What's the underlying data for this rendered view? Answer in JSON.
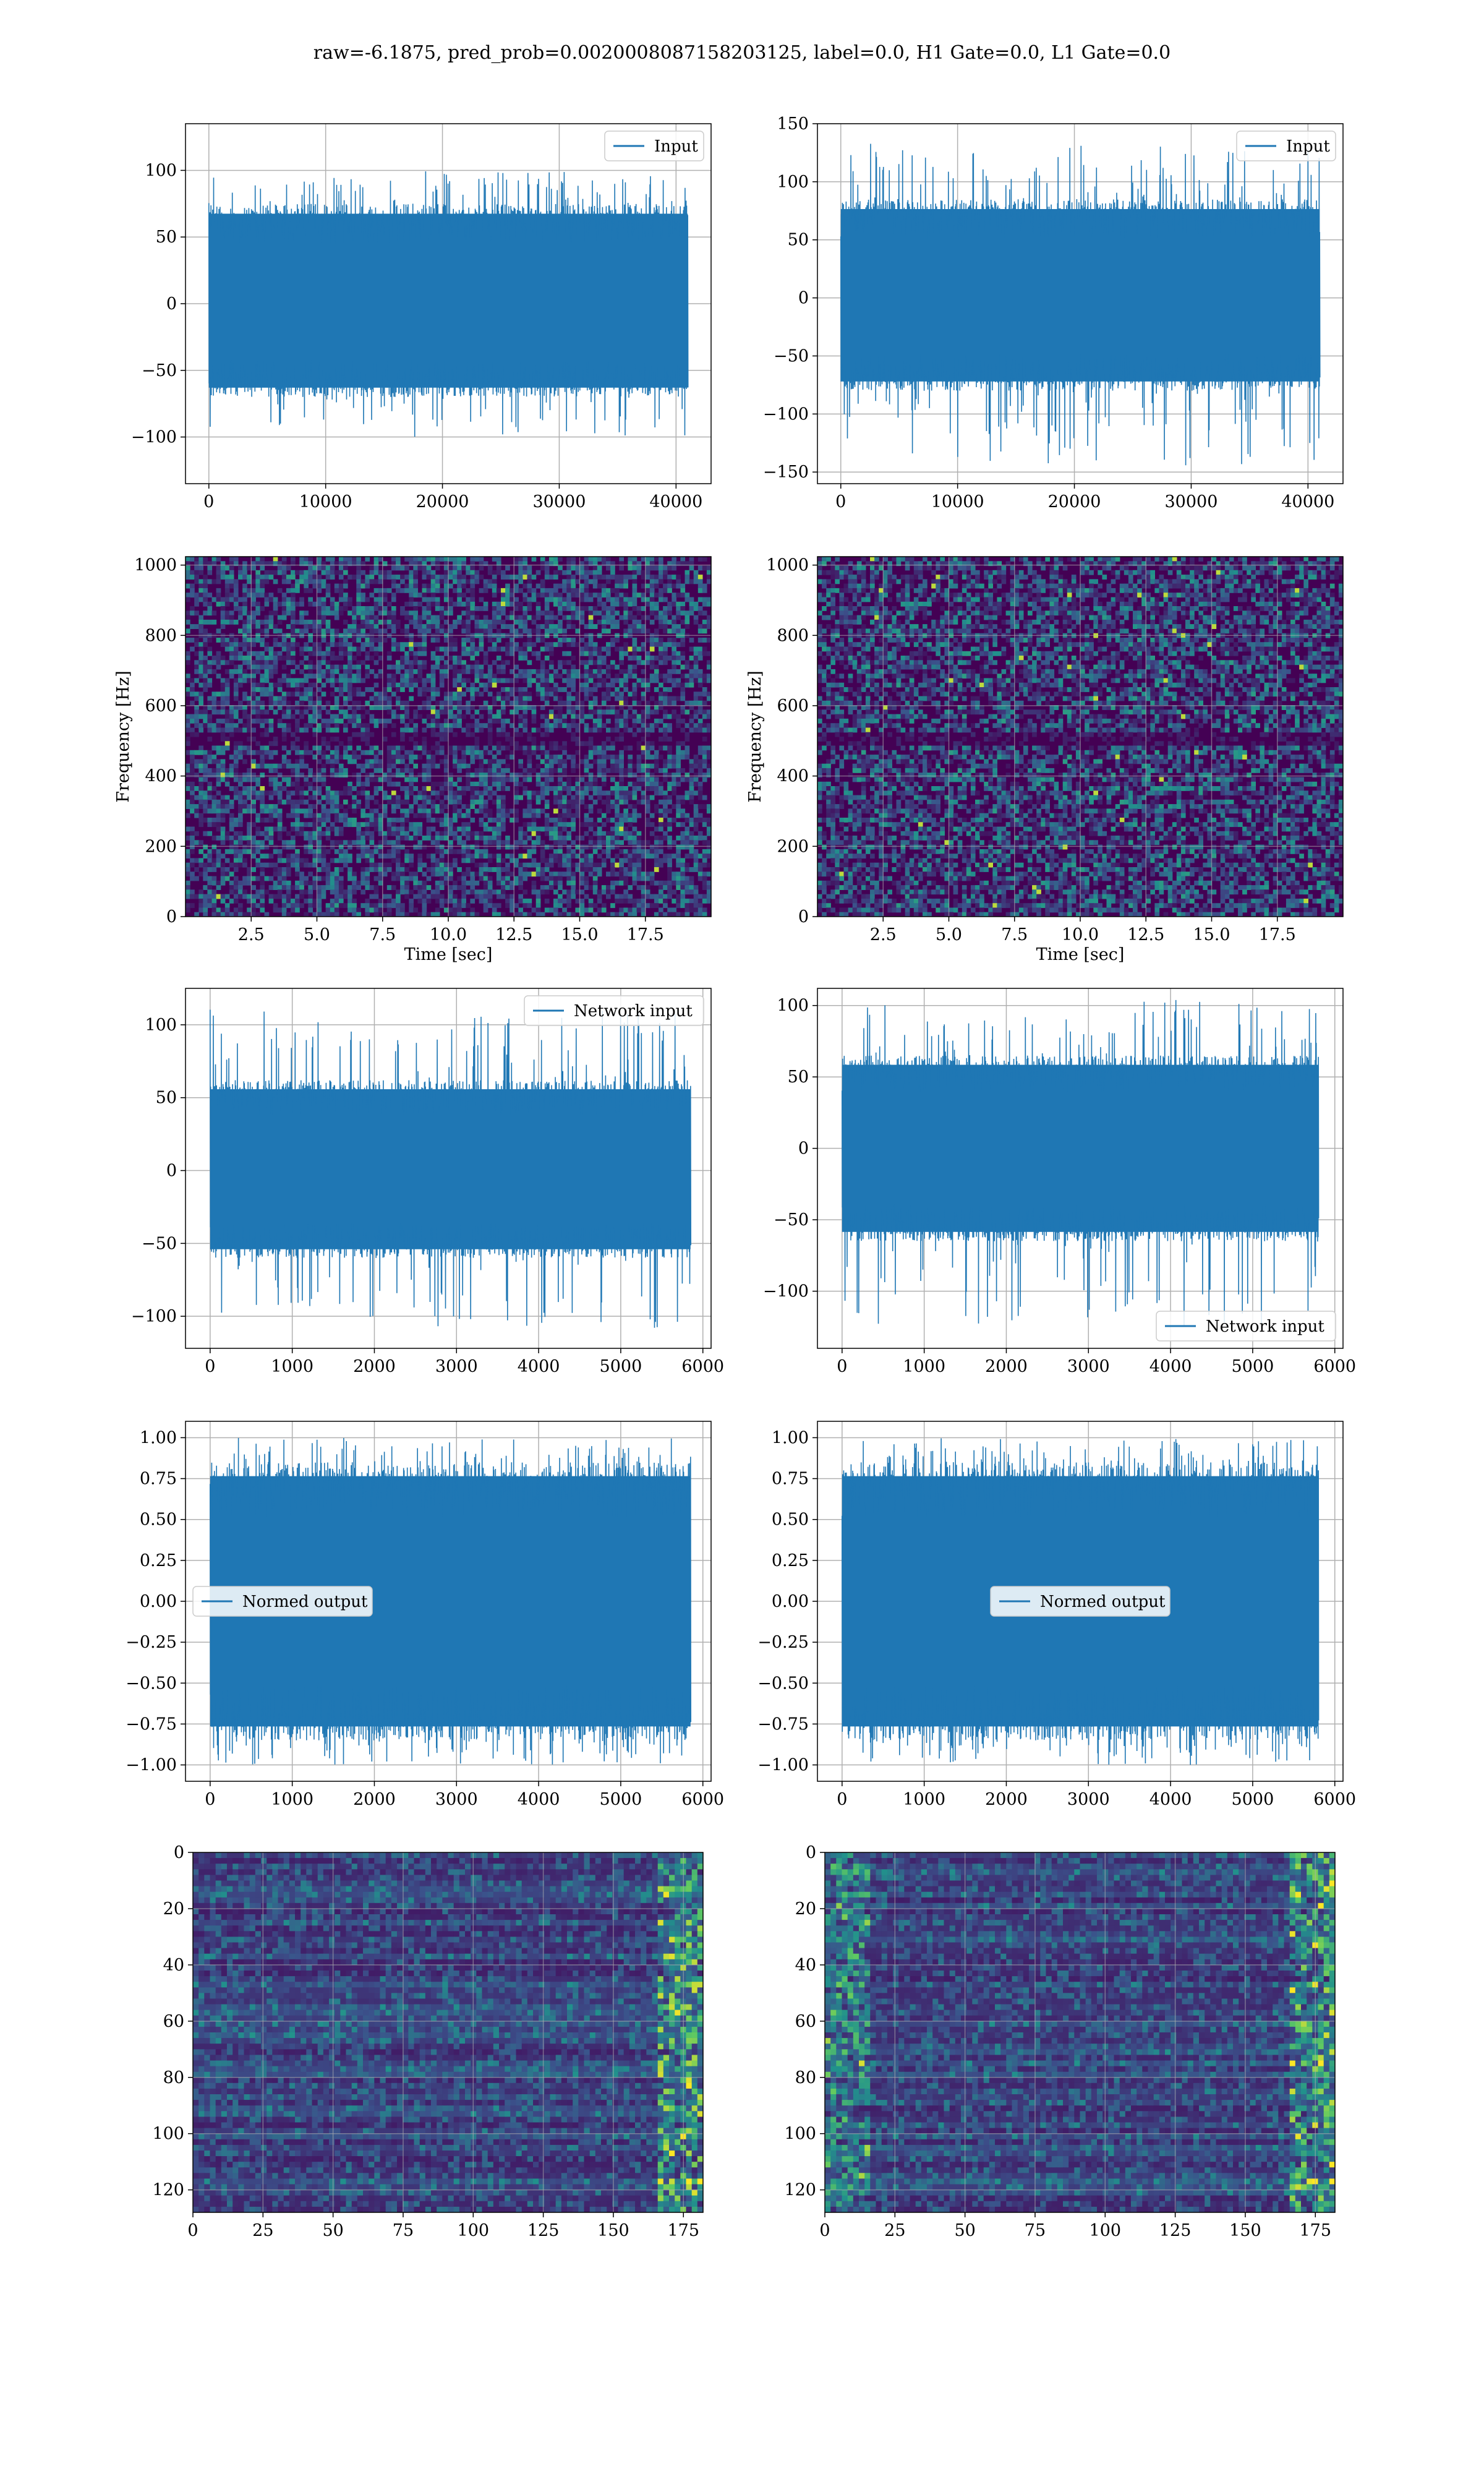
{
  "figure_title": "raw=-6.1875, pred_prob=0.0020008087158203125, label=0.0, H1 Gate=0.0, L1 Gate=0.0",
  "colors": {
    "line": "#1f77b4",
    "grid": "#b0b0b0",
    "viridis_dark": "#440154",
    "viridis_bright": "#fde725"
  },
  "chart_data": [
    {
      "id": "input-left",
      "type": "line",
      "series": [
        {
          "name": "Input"
        }
      ],
      "legend": "top-right",
      "xlim": [
        -2000,
        43000
      ],
      "ylim": [
        -135,
        135
      ],
      "xticks": [
        0,
        10000,
        20000,
        30000,
        40000
      ],
      "yticks": [
        -100,
        -50,
        0,
        50,
        100
      ],
      "x_extent": [
        0,
        41000
      ],
      "envelope": [
        -100,
        100
      ],
      "core": [
        -70,
        75
      ],
      "grid": true
    },
    {
      "id": "input-right",
      "type": "line",
      "series": [
        {
          "name": "Input"
        }
      ],
      "legend": "top-right",
      "xlim": [
        -2000,
        43000
      ],
      "ylim": [
        -160,
        150
      ],
      "xticks": [
        0,
        10000,
        20000,
        30000,
        40000
      ],
      "yticks": [
        -150,
        -100,
        -50,
        0,
        50,
        100,
        150
      ],
      "x_extent": [
        0,
        41000
      ],
      "envelope": [
        -145,
        135
      ],
      "core": [
        -80,
        85
      ],
      "grid": true
    },
    {
      "id": "spectrogram-left",
      "type": "heatmap",
      "xlabel": "Time [sec]",
      "ylabel": "Frequency [Hz]",
      "xlim": [
        0,
        20
      ],
      "ylim": [
        0,
        1024
      ],
      "xticks": [
        2.5,
        5.0,
        7.5,
        10.0,
        12.5,
        15.0,
        17.5
      ],
      "yticks": [
        0,
        200,
        400,
        600,
        800,
        1000
      ],
      "colormap": "viridis",
      "grid": true
    },
    {
      "id": "spectrogram-right",
      "type": "heatmap",
      "xlabel": "Time [sec]",
      "ylabel": "Frequency [Hz]",
      "xlim": [
        0,
        20
      ],
      "ylim": [
        0,
        1024
      ],
      "xticks": [
        2.5,
        5.0,
        7.5,
        10.0,
        12.5,
        15.0,
        17.5
      ],
      "yticks": [
        0,
        200,
        400,
        600,
        800,
        1000
      ],
      "colormap": "viridis",
      "grid": true
    },
    {
      "id": "network-left",
      "type": "line",
      "series": [
        {
          "name": "Network input"
        }
      ],
      "legend": "top-right",
      "xlim": [
        -300,
        6100
      ],
      "ylim": [
        -122,
        125
      ],
      "xticks": [
        0,
        1000,
        2000,
        3000,
        4000,
        5000,
        6000
      ],
      "yticks": [
        -100,
        -50,
        0,
        50,
        100
      ],
      "x_extent": [
        0,
        5850
      ],
      "envelope": [
        -110,
        112
      ],
      "core": [
        -60,
        62
      ],
      "grid": true
    },
    {
      "id": "network-right",
      "type": "line",
      "series": [
        {
          "name": "Network input"
        }
      ],
      "legend": "lower-right",
      "xlim": [
        -300,
        6100
      ],
      "ylim": [
        -140,
        112
      ],
      "xticks": [
        0,
        1000,
        2000,
        3000,
        4000,
        5000,
        6000
      ],
      "yticks": [
        -100,
        -50,
        0,
        50,
        100
      ],
      "x_extent": [
        0,
        5800
      ],
      "envelope": [
        -128,
        104
      ],
      "core": [
        -65,
        65
      ],
      "grid": true
    },
    {
      "id": "normed-left",
      "type": "line",
      "series": [
        {
          "name": "Normed output"
        }
      ],
      "legend": "center-left",
      "xlim": [
        -300,
        6100
      ],
      "ylim": [
        -1.1,
        1.1
      ],
      "xticks": [
        0,
        1000,
        2000,
        3000,
        4000,
        5000,
        6000
      ],
      "yticks": [
        -1.0,
        -0.75,
        -0.5,
        -0.25,
        0.0,
        0.25,
        0.5,
        0.75,
        1.0
      ],
      "x_extent": [
        0,
        5850
      ],
      "envelope": [
        -1,
        1
      ],
      "core": [
        -0.85,
        0.85
      ],
      "grid": true
    },
    {
      "id": "normed-right",
      "type": "line",
      "series": [
        {
          "name": "Normed output"
        }
      ],
      "legend": "center",
      "xlim": [
        -300,
        6100
      ],
      "ylim": [
        -1.1,
        1.1
      ],
      "xticks": [
        0,
        1000,
        2000,
        3000,
        4000,
        5000,
        6000
      ],
      "yticks": [
        -1.0,
        -0.75,
        -0.5,
        -0.25,
        0.0,
        0.25,
        0.5,
        0.75,
        1.0
      ],
      "x_extent": [
        0,
        5800
      ],
      "envelope": [
        -1,
        1
      ],
      "core": [
        -0.85,
        0.85
      ],
      "grid": true
    },
    {
      "id": "features-left",
      "type": "heatmap",
      "xlim": [
        0,
        182
      ],
      "ylim": [
        128,
        0
      ],
      "xticks": [
        0,
        25,
        50,
        75,
        100,
        125,
        150,
        175
      ],
      "yticks": [
        0,
        20,
        40,
        60,
        80,
        100,
        120
      ],
      "colormap": "viridis",
      "grid": true
    },
    {
      "id": "features-right",
      "type": "heatmap",
      "xlim": [
        0,
        182
      ],
      "ylim": [
        128,
        0
      ],
      "xticks": [
        0,
        25,
        50,
        75,
        100,
        125,
        150,
        175
      ],
      "yticks": [
        0,
        20,
        40,
        60,
        80,
        100,
        120
      ],
      "colormap": "viridis",
      "grid": true
    }
  ]
}
